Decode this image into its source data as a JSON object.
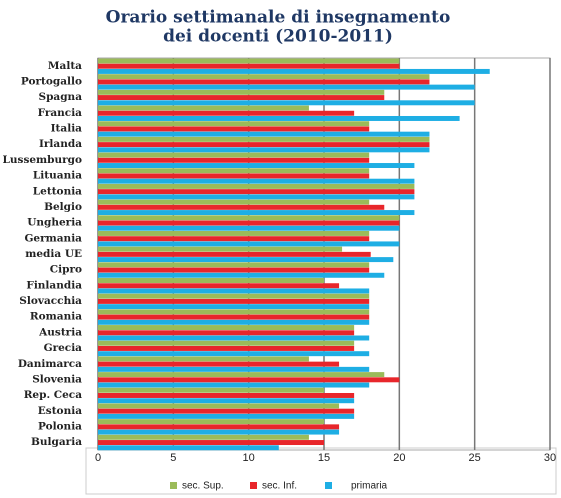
{
  "chart_data": {
    "type": "hbar",
    "title": [
      "Orario settimanale di insegnamento",
      "dei docenti (2010-2011)"
    ],
    "categories": [
      "Malta",
      "Portogallo",
      "Spagna",
      "Francia",
      "Italia",
      "Irlanda",
      "Lussemburgo",
      "Lituania",
      "Lettonia",
      "Belgio",
      "Ungheria",
      "Germania",
      "media UE",
      "Cipro",
      "Finlandia",
      "Slovacchia",
      "Romania",
      "Austria",
      "Grecia",
      "Danimarca",
      "Slovenia",
      "Rep. Ceca",
      "Estonia",
      "Polonia",
      "Bulgaria"
    ],
    "series": [
      {
        "name": "sec. Sup.",
        "color": "#9bbb59",
        "values": [
          20,
          22,
          19,
          14,
          18,
          22,
          18,
          18,
          21,
          18,
          20,
          18,
          16.2,
          18,
          15,
          18,
          18,
          17,
          17,
          14,
          19,
          15,
          16,
          15,
          14
        ]
      },
      {
        "name": "sec. Inf.",
        "color": "#e8262b",
        "values": [
          20,
          22,
          19,
          17,
          18,
          22,
          18,
          18,
          21,
          19,
          20,
          18,
          18.1,
          18,
          16,
          18,
          18,
          17,
          17,
          16,
          20,
          17,
          17,
          16,
          15
        ]
      },
      {
        "name": "primaria",
        "color": "#1eaee4",
        "values": [
          26,
          25,
          25,
          24,
          22,
          22,
          21,
          21,
          21,
          21,
          20,
          20,
          19.6,
          19,
          18,
          18,
          18,
          18,
          18,
          18,
          18,
          17,
          17,
          16,
          12
        ]
      }
    ],
    "xlim": [
      0,
      30
    ],
    "xticks": [
      0,
      5,
      10,
      15,
      20,
      25,
      30
    ],
    "grid": true
  }
}
